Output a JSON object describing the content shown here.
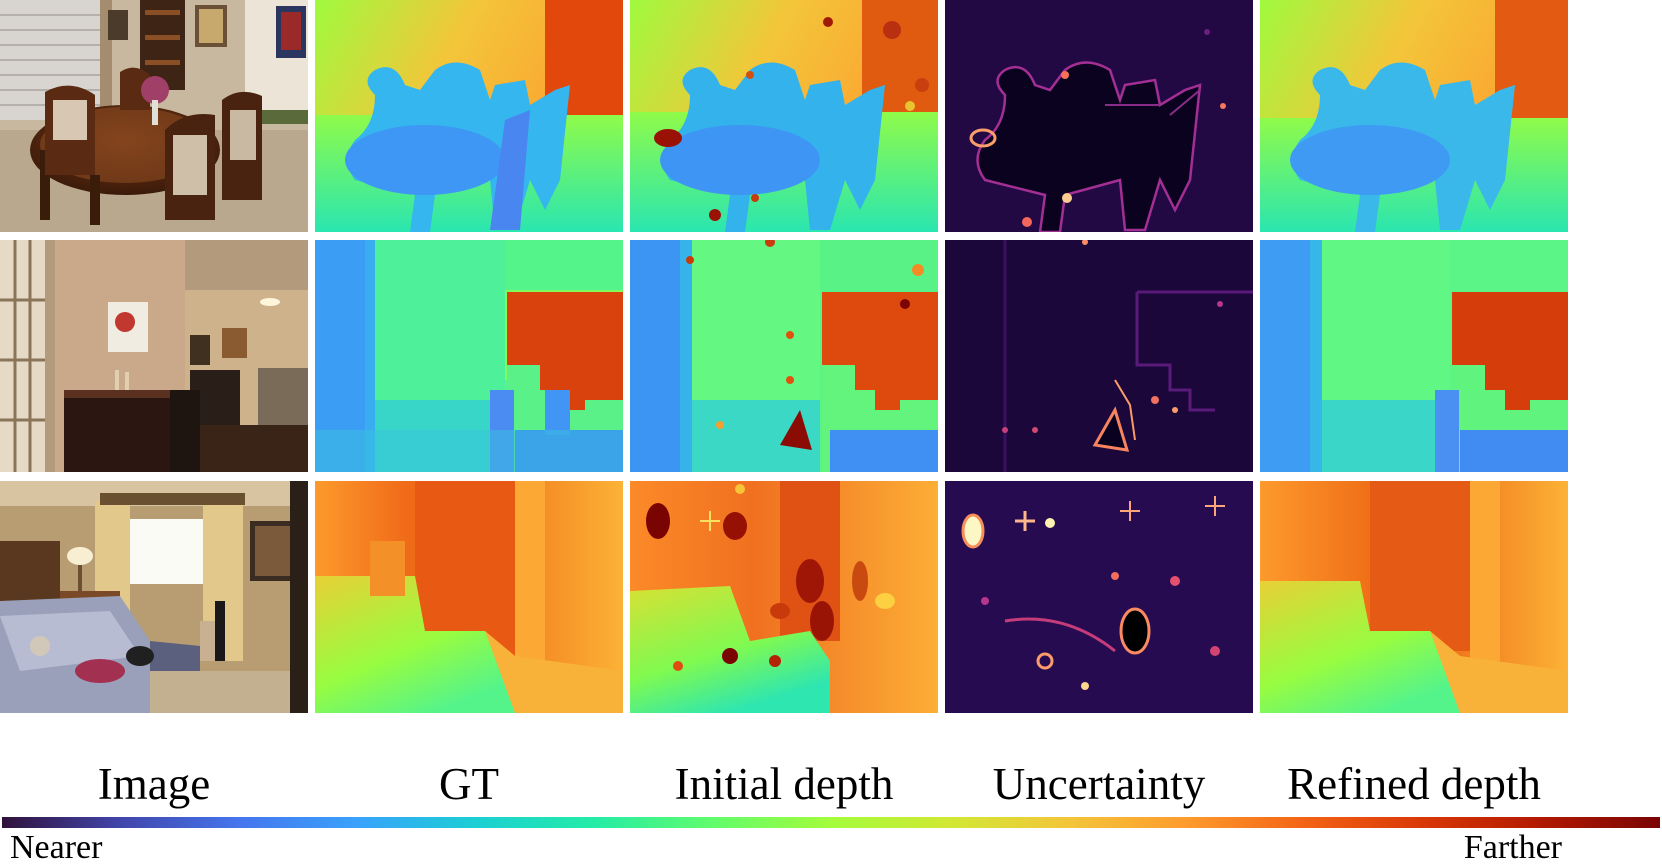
{
  "figure": {
    "columns": [
      {
        "id": "image",
        "label": "Image"
      },
      {
        "id": "gt",
        "label": "GT"
      },
      {
        "id": "initial",
        "label": "Initial depth"
      },
      {
        "id": "uncertainty",
        "label": "Uncertainty"
      },
      {
        "id": "refined",
        "label": "Refined depth"
      }
    ],
    "colorbar": {
      "min_label": "Nearer",
      "max_label": "Farther",
      "colormap": [
        "#30123b",
        "#4145ab",
        "#4675ed",
        "#39a2fc",
        "#1bcfd4",
        "#24eca6",
        "#61fc6c",
        "#a4fc3b",
        "#d1e834",
        "#f3c63a",
        "#fe9b2d",
        "#f36315",
        "#d93806",
        "#b11901",
        "#7a0402"
      ]
    },
    "rows": [
      {
        "scene": "dining room"
      },
      {
        "scene": "hallway"
      },
      {
        "scene": "bedroom"
      }
    ]
  }
}
